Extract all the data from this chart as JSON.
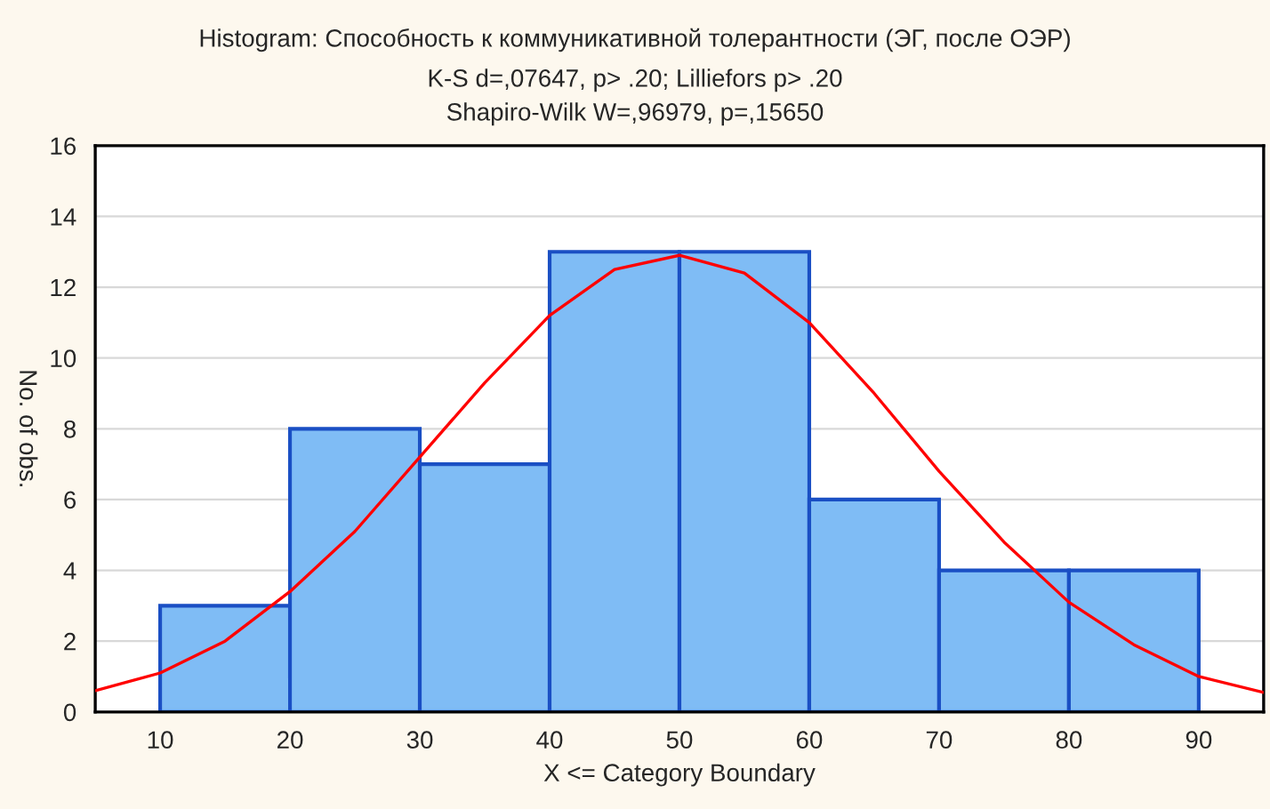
{
  "chart_data": {
    "type": "histogram",
    "title": "Histogram: Способность к коммуникативной толерантности (ЭГ, после ОЭР)",
    "subtitle": "K-S d=,07647, p> .20; Lilliefors p> .20\nShapiro-Wilk W=,96979, p=,15650",
    "xlabel": "X <= Category Boundary",
    "ylabel": "No. of obs.",
    "series": [
      {
        "bins": [
          10,
          20,
          30,
          40,
          50,
          60,
          70,
          80,
          90
        ],
        "values": [
          3,
          8,
          7,
          13,
          13,
          6,
          4,
          4
        ],
        "color": "#7fbcf5"
      },
      {
        "type": "line",
        "color": "#ff0000",
        "x": [
          5,
          10,
          15,
          20,
          25,
          30,
          35,
          40,
          45,
          50,
          55,
          60,
          65,
          70,
          75,
          80,
          85,
          90,
          95
        ],
        "values": [
          0.6,
          1.1,
          2.0,
          3.4,
          5.1,
          7.2,
          9.3,
          11.2,
          12.5,
          12.9,
          12.4,
          11.0,
          9.0,
          6.8,
          4.8,
          3.1,
          1.9,
          1.0,
          0.55
        ]
      }
    ],
    "xlim": [
      5,
      95
    ],
    "xticks": [
      10,
      20,
      30,
      40,
      50,
      60,
      70,
      80,
      90
    ],
    "ylim": [
      0,
      16
    ],
    "yticks": [
      0,
      2,
      4,
      6,
      8,
      10,
      12,
      14,
      16
    ],
    "grid": "y",
    "legend": false
  }
}
